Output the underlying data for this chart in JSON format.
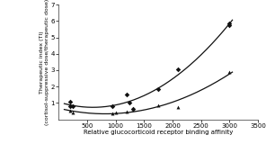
{
  "title": "",
  "xlabel": "Relative glucocorticoid receptor binding affinity",
  "ylabel": "Therapeutic index (TI)\n(cortisol-suppressive dose/therapeutic dose)",
  "xlim": [
    0,
    3500
  ],
  "ylim": [
    0,
    7
  ],
  "xticks": [
    500,
    1000,
    1500,
    2000,
    2500,
    3000,
    3500
  ],
  "yticks": [
    1,
    2,
    3,
    4,
    5,
    6,
    7
  ],
  "diamond_x": [
    200,
    200,
    250,
    950,
    1200,
    1250,
    1300,
    1750,
    2100,
    3000,
    3000
  ],
  "diamond_y": [
    1.05,
    0.78,
    0.82,
    0.78,
    1.5,
    1.02,
    0.65,
    1.82,
    3.05,
    5.85,
    5.75
  ],
  "triangle_x": [
    200,
    250,
    950,
    1000,
    1200,
    1300,
    1750,
    2100,
    3000
  ],
  "triangle_y": [
    0.5,
    0.42,
    0.38,
    0.42,
    0.48,
    0.62,
    0.85,
    0.75,
    2.9
  ],
  "curve_color": "#111111",
  "marker_color": "#111111",
  "background_color": "#ffffff",
  "xlabel_fontsize": 5,
  "ylabel_fontsize": 4.5,
  "tick_fontsize": 5
}
